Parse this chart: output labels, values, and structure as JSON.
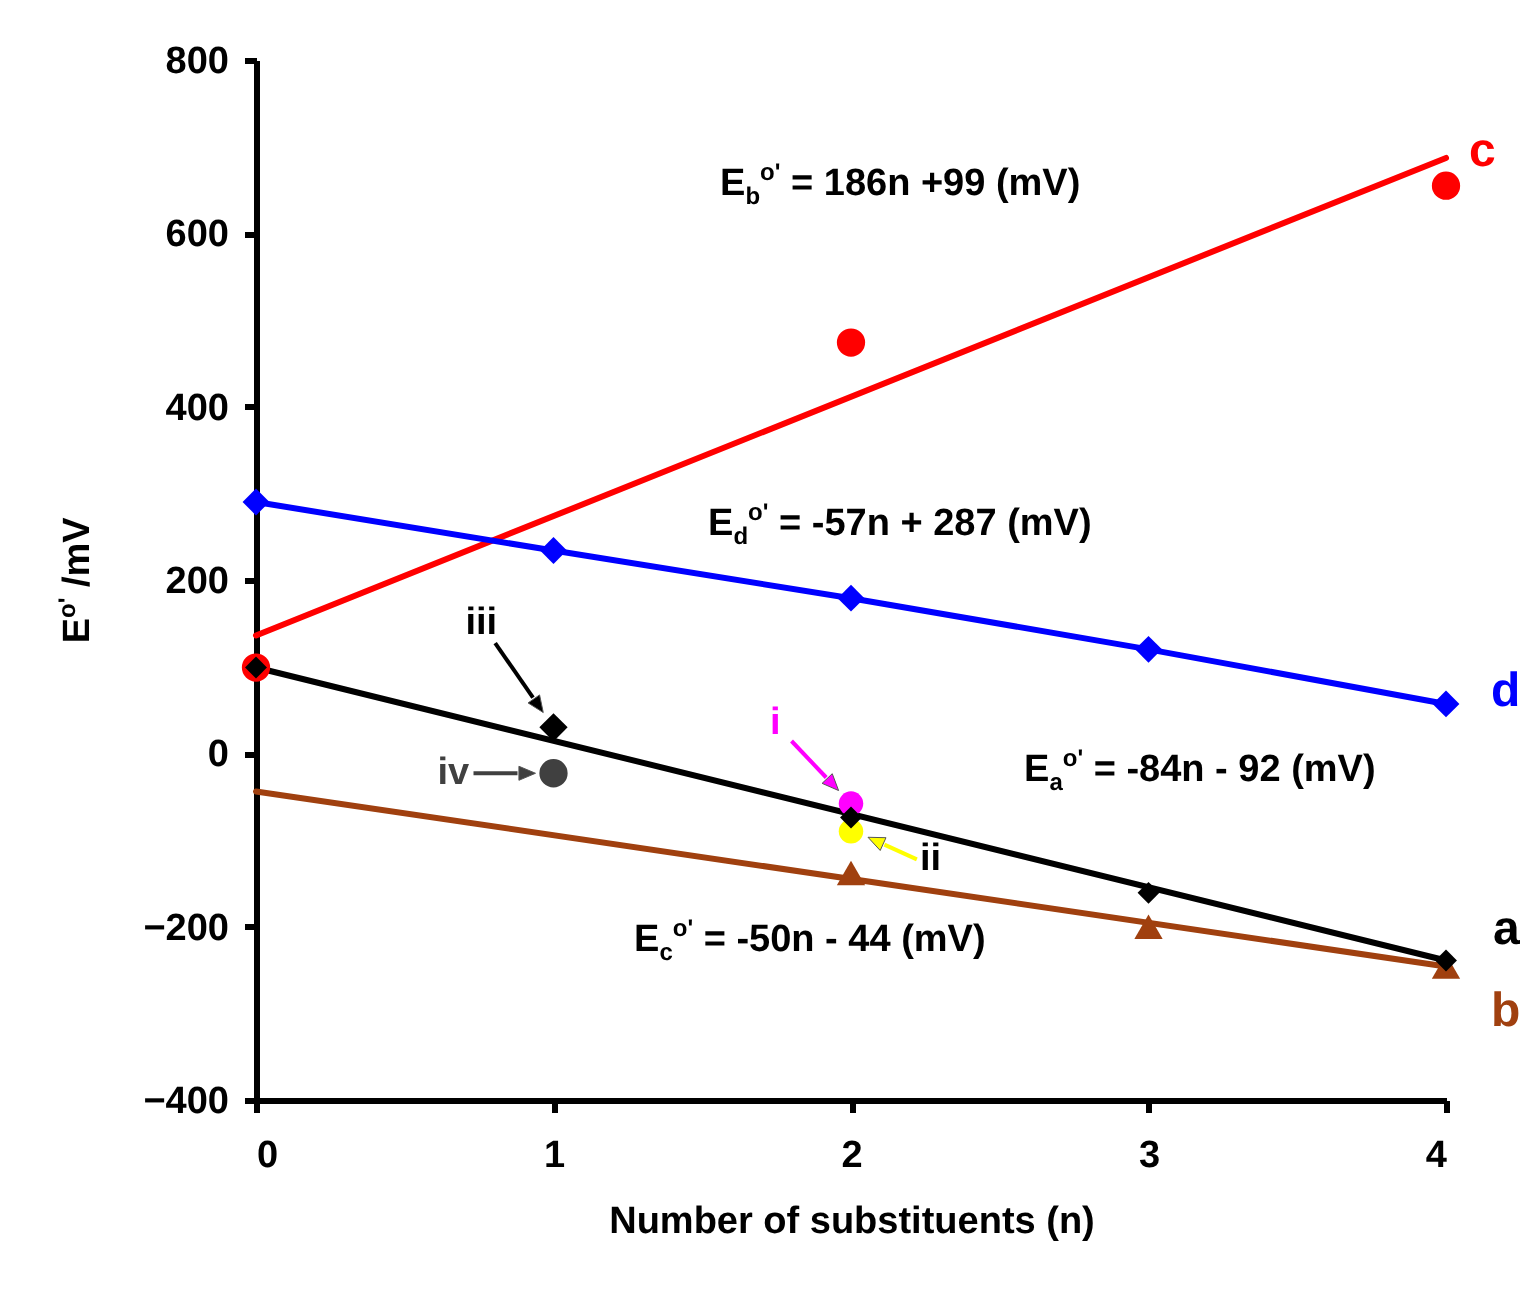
{
  "chart_data": {
    "type": "line",
    "xlabel": "Number of substituents (n)",
    "ylabel": "E$^{o'}$ /mV",
    "xlim": [
      0,
      4
    ],
    "xticks": [
      0,
      1,
      2,
      3,
      4
    ],
    "ylim": [
      -400,
      800
    ],
    "yticks": [
      -400,
      -200,
      0,
      200,
      400,
      600,
      800
    ],
    "grid": false,
    "series": [
      {
        "type": "line",
        "color": "#ff0000",
        "marker": "none",
        "x": [
          0,
          4
        ],
        "values": [
          136,
          687
        ]
      },
      {
        "type": "line",
        "color": "#000000",
        "marker": "none",
        "x": [
          0,
          4
        ],
        "values": [
          99,
          -239
        ]
      },
      {
        "type": "line",
        "color": "#a0400f",
        "marker": "none",
        "x": [
          0,
          4
        ],
        "values": [
          -44,
          -246
        ]
      },
      {
        "name": "d",
        "type": "line",
        "color": "#0000ff",
        "marker": "diamond",
        "x": [
          0,
          1,
          2,
          3,
          4
        ],
        "values": [
          290,
          234,
          179,
          120,
          57
        ]
      },
      {
        "name": "c",
        "type": "scatter",
        "color": "#ff0000",
        "marker": "circle",
        "x": [
          0,
          2,
          4
        ],
        "values": [
          99,
          474,
          655
        ]
      },
      {
        "name": "b",
        "type": "scatter",
        "color": "#a0400f",
        "marker": "triangle",
        "x": [
          2,
          3,
          4
        ],
        "values": [
          -138,
          -200,
          -246
        ]
      },
      {
        "name": "iii",
        "type": "scatter",
        "color": "#000000",
        "marker": "diamond",
        "x": [
          1
        ],
        "values": [
          30
        ]
      },
      {
        "name": "iv",
        "type": "scatter",
        "color": "#404040",
        "marker": "circle",
        "x": [
          1
        ],
        "values": [
          -23
        ]
      },
      {
        "name": "i",
        "type": "scatter",
        "color": "#ff00ff",
        "marker": "circle",
        "x": [
          2
        ],
        "values": [
          -58
        ]
      },
      {
        "name": "ii",
        "type": "scatter",
        "color": "#ffff00",
        "marker": "circle",
        "x": [
          2
        ],
        "values": [
          -90
        ]
      },
      {
        "name": "a",
        "type": "scatter",
        "color": "#000000",
        "marker": "diamond",
        "x": [
          0,
          2,
          3,
          4
        ],
        "values": [
          99,
          -74,
          -161,
          -239
        ]
      }
    ],
    "annotations": [
      "E$_{b}$$^{o'}$ = 186n +99 (mV)",
      "E$_{d}$$^{o'}$ = -57n + 287 (mV)",
      "E$_{a}$$^{o'}$ = -84n - 92 (mV)",
      "E$_{c}$$^{o'}$ = -50n - 44 (mV)"
    ]
  }
}
